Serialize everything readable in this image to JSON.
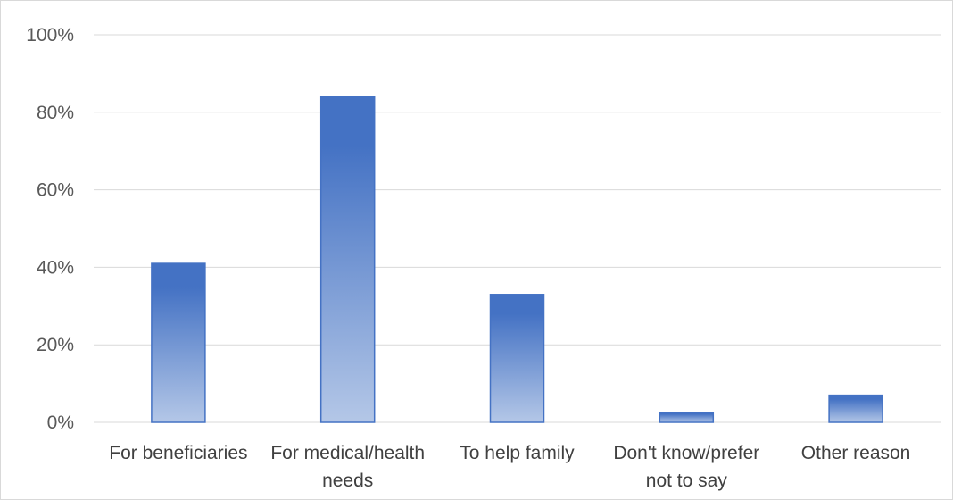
{
  "chart_data": {
    "type": "bar",
    "title": "",
    "xlabel": "",
    "ylabel": "",
    "categories": [
      "For beneficiaries",
      "For medical/health needs",
      "To help family",
      "Don't know/prefer not to say",
      "Other reason"
    ],
    "category_label_lines": [
      [
        "For beneficiaries"
      ],
      [
        "For medical/health",
        "needs"
      ],
      [
        "To help family"
      ],
      [
        "Don't know/prefer",
        "not to say"
      ],
      [
        "Other reason"
      ]
    ],
    "values": [
      41,
      84,
      33,
      2.5,
      7
    ],
    "ylim": [
      0,
      100
    ],
    "yticks": [
      0,
      20,
      40,
      60,
      80,
      100
    ],
    "ytick_labels": [
      "0%",
      "20%",
      "40%",
      "60%",
      "80%",
      "100%"
    ],
    "grid": true,
    "legend": "none",
    "colors": {
      "bar_top": "#4472c4",
      "bar_bottom": "#b4c7e7",
      "bar_border": "#4472c4",
      "grid": "#d9d9d9",
      "axis_text": "#595959"
    }
  }
}
